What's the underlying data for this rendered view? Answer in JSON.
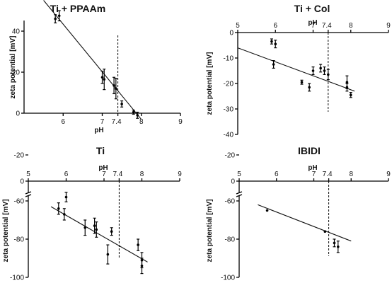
{
  "chart_data": [
    {
      "type": "scatter",
      "title": "Ti + PPAAm",
      "xlabel": "pH",
      "ylabel": "zeta potential [mV]",
      "xlim": [
        5,
        9
      ],
      "ylim": [
        -3,
        55
      ],
      "x_ticks": [
        "6",
        "7",
        "7.4",
        "8",
        "9"
      ],
      "y_ticks": [
        "0",
        "20",
        "40"
      ],
      "reference_x": 7.4,
      "x_axis_position": "bottom",
      "points": [
        {
          "x": 5.8,
          "y": 46,
          "err": 2
        },
        {
          "x": 5.9,
          "y": 47.5,
          "err": 2.5
        },
        {
          "x": 7.0,
          "y": 17.5,
          "err": 3
        },
        {
          "x": 7.05,
          "y": 16.5,
          "err": 5
        },
        {
          "x": 7.3,
          "y": 13.5,
          "err": 4
        },
        {
          "x": 7.35,
          "y": 12,
          "err": 5
        },
        {
          "x": 7.5,
          "y": 4.5,
          "err": 1.5
        },
        {
          "x": 7.8,
          "y": 0.5,
          "err": 1
        },
        {
          "x": 7.9,
          "y": -1,
          "err": 1.5
        }
      ],
      "fit": [
        [
          5.5,
          55
        ],
        [
          8.0,
          -3
        ]
      ]
    },
    {
      "type": "scatter",
      "title": "Ti + Col",
      "xlabel": "pH",
      "ylabel": "zeta potential [mV]",
      "xlim": [
        5,
        9
      ],
      "ylim": [
        -40,
        0
      ],
      "x_ticks": [
        "5",
        "6",
        "7",
        "7.4",
        "8",
        "9"
      ],
      "y_ticks": [
        "0",
        "-10",
        "-20",
        "-30",
        "-40"
      ],
      "reference_x": 7.4,
      "x_axis_position": "top",
      "points": [
        {
          "x": 5.9,
          "y": -3.5,
          "err": 1
        },
        {
          "x": 6.0,
          "y": -4.5,
          "err": 1.5
        },
        {
          "x": 5.95,
          "y": -12.5,
          "err": 1.5
        },
        {
          "x": 6.7,
          "y": -19.5,
          "err": 0.8
        },
        {
          "x": 6.9,
          "y": -21.5,
          "err": 1.5
        },
        {
          "x": 7.0,
          "y": -15,
          "err": 1.5
        },
        {
          "x": 7.2,
          "y": -14,
          "err": 1.5
        },
        {
          "x": 7.3,
          "y": -15,
          "err": 1.5
        },
        {
          "x": 7.4,
          "y": -16.5,
          "err": 2
        },
        {
          "x": 7.9,
          "y": -19.5,
          "err": 2.5
        },
        {
          "x": 7.9,
          "y": -21.5,
          "err": 1.5
        },
        {
          "x": 8.0,
          "y": -24.5,
          "err": 1
        }
      ],
      "fit": [
        [
          5.0,
          -6
        ],
        [
          8.1,
          -23
        ]
      ]
    },
    {
      "type": "scatter",
      "title": "Ti",
      "xlabel": "pH",
      "ylabel": "zeta potential [mV]",
      "xlim": [
        5,
        9
      ],
      "x_ticks": [
        "5",
        "6",
        "7",
        "7.4",
        "8",
        "9"
      ],
      "y_ticks": [
        "0",
        "-20",
        "-60",
        "-80",
        "-100"
      ],
      "y_axis_break": true,
      "reference_x": 7.4,
      "x_axis_position": "top",
      "points": [
        {
          "x": 5.8,
          "y": -64,
          "err": 3
        },
        {
          "x": 5.95,
          "y": -67,
          "err": 3
        },
        {
          "x": 6.0,
          "y": -58,
          "err": 2.5
        },
        {
          "x": 6.5,
          "y": -74,
          "err": 4
        },
        {
          "x": 6.75,
          "y": -73,
          "err": 4
        },
        {
          "x": 6.8,
          "y": -75,
          "err": 4
        },
        {
          "x": 7.1,
          "y": -88,
          "err": 5
        },
        {
          "x": 7.2,
          "y": -76,
          "err": 2
        },
        {
          "x": 7.9,
          "y": -83,
          "err": 3
        },
        {
          "x": 8.0,
          "y": -94,
          "err": 4
        },
        {
          "x": 8.0,
          "y": -91,
          "err": 4
        }
      ],
      "fit": [
        [
          5.6,
          -63
        ],
        [
          8.15,
          -92
        ]
      ]
    },
    {
      "type": "scatter",
      "title": "IBIDI",
      "xlabel": "pH",
      "ylabel": "zeta potential [mV]",
      "xlim": [
        5,
        9
      ],
      "x_ticks": [
        "5",
        "6",
        "7",
        "7.4",
        "8",
        "9"
      ],
      "y_ticks": [
        "0",
        "-20",
        "-60",
        "-80",
        "-100"
      ],
      "y_axis_break": true,
      "reference_x": 7.4,
      "x_axis_position": "top",
      "points": [
        {
          "x": 5.75,
          "y": -65,
          "err": 0
        },
        {
          "x": 7.3,
          "y": -76,
          "err": 0
        },
        {
          "x": 7.55,
          "y": -82,
          "err": 2
        },
        {
          "x": 7.65,
          "y": -84,
          "err": 3
        }
      ],
      "fit": [
        [
          5.5,
          -62
        ],
        [
          8.0,
          -81
        ]
      ]
    }
  ]
}
